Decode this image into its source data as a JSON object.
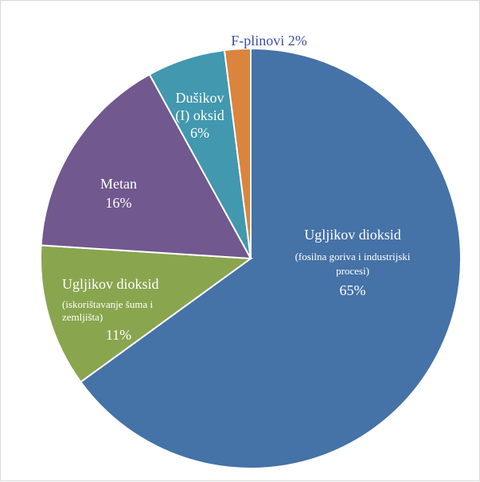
{
  "chart_data": {
    "type": "pie",
    "start_angle_deg": 0,
    "direction": "clockwise",
    "slices": [
      {
        "label_lines": [
          "Ugljikov dioksid",
          "(fosilna goriva i industrijski",
          "procesi)"
        ],
        "percent_label": "65%",
        "value": 65,
        "color": "#4572a7"
      },
      {
        "label_lines": [
          "Ugljikov dioksid",
          "(iskorištavanje šuma i",
          "zemljišta)"
        ],
        "percent_label": "11%",
        "value": 11,
        "color": "#89a54e"
      },
      {
        "label_lines": [
          "Metan"
        ],
        "percent_label": "16%",
        "value": 16,
        "color": "#71588f"
      },
      {
        "label_lines": [
          "Dušikov",
          "(I) oksid"
        ],
        "percent_label": "6%",
        "value": 6,
        "color": "#4198af"
      },
      {
        "label_lines": [
          "F-plinovi 2%"
        ],
        "percent_label": "",
        "value": 2,
        "color": "#db843d",
        "label_outside": true,
        "label_color": "#3a4fa8"
      }
    ]
  }
}
